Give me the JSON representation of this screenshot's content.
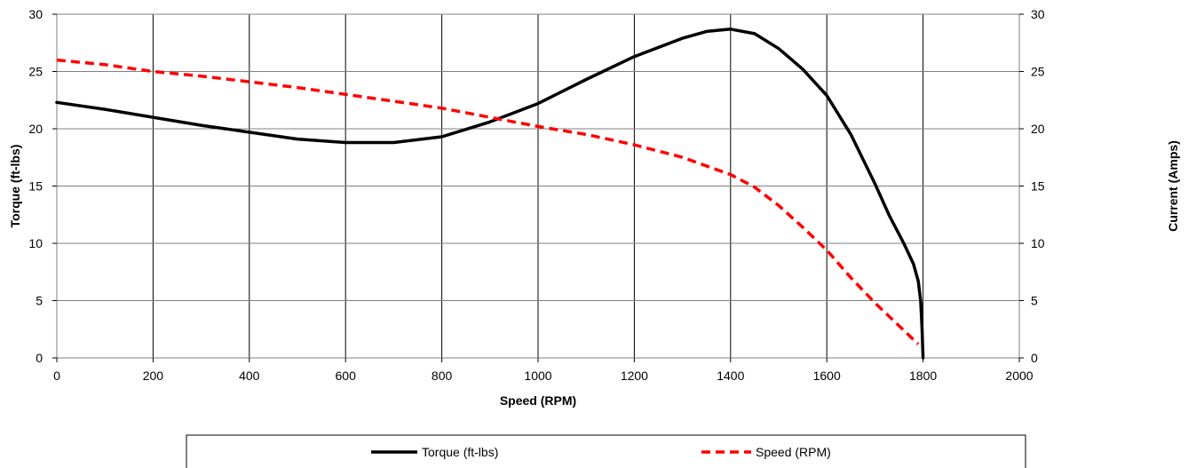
{
  "chart_data": {
    "type": "line",
    "title": "",
    "xlabel": "Speed (RPM)",
    "ylabel": "Torque (ft-lbs)",
    "y2label": "Current (Amps)",
    "xlim": [
      0,
      2000
    ],
    "ylim": [
      0,
      30
    ],
    "y2lim": [
      0,
      30
    ],
    "xticks": [
      "0",
      "200",
      "400",
      "600",
      "800",
      "1000",
      "1200",
      "1400",
      "1600",
      "1800",
      "2000"
    ],
    "yticks": [
      "0",
      "5",
      "10",
      "15",
      "20",
      "25",
      "30"
    ],
    "y2ticks": [
      "0",
      "5",
      "10",
      "15",
      "20",
      "25",
      "30"
    ],
    "grid": true,
    "legend_position": "bottom",
    "series": [
      {
        "name": "Torque (ft-lbs)",
        "color": "#000000",
        "dash": "solid",
        "x": [
          0,
          100,
          200,
          300,
          400,
          500,
          600,
          700,
          800,
          900,
          1000,
          1100,
          1200,
          1300,
          1350,
          1400,
          1450,
          1500,
          1550,
          1600,
          1650,
          1700,
          1730,
          1760,
          1780,
          1790,
          1795,
          1798,
          1800
        ],
        "y": [
          22.3,
          21.7,
          21.0,
          20.3,
          19.7,
          19.1,
          18.8,
          18.8,
          19.3,
          20.6,
          22.2,
          24.3,
          26.3,
          27.9,
          28.5,
          28.7,
          28.3,
          27.0,
          25.2,
          22.9,
          19.5,
          15.2,
          12.4,
          10.0,
          8.2,
          6.7,
          5.0,
          2.5,
          0.0
        ]
      },
      {
        "name": "Speed (RPM)",
        "color": "#ff0000",
        "dash": "dashed",
        "x": [
          0,
          100,
          200,
          300,
          400,
          500,
          600,
          700,
          800,
          900,
          1000,
          1100,
          1200,
          1300,
          1400,
          1450,
          1500,
          1550,
          1600,
          1650,
          1700,
          1750,
          1790
        ],
        "y": [
          26.0,
          25.6,
          25.0,
          24.6,
          24.1,
          23.6,
          23.0,
          22.4,
          21.8,
          21.0,
          20.2,
          19.5,
          18.6,
          17.5,
          16.0,
          14.9,
          13.3,
          11.4,
          9.4,
          7.0,
          4.8,
          2.8,
          1.2
        ]
      }
    ]
  }
}
